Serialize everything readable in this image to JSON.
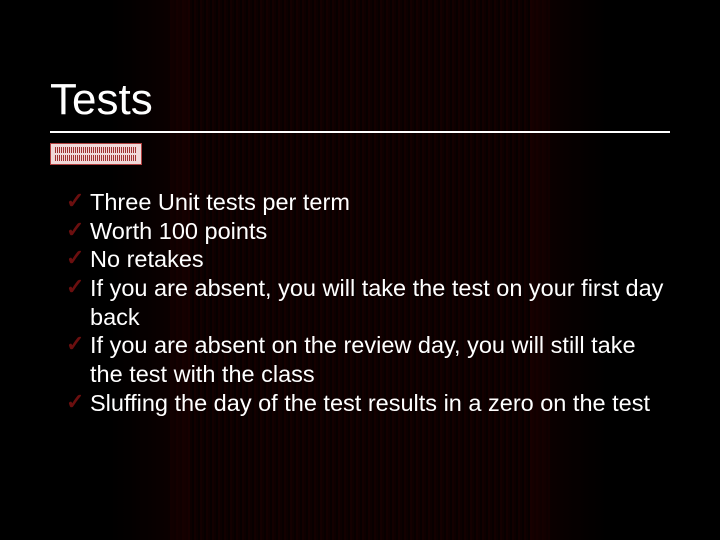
{
  "slide": {
    "title": "Tests",
    "bullets": [
      "Three Unit tests per term",
      "Worth 100 points",
      "No retakes",
      "If you are absent, you will take the test on your first day back",
      "If you are absent on the review day, you will still take the test with the class",
      "Sluffing the day of the test results in a zero on the test"
    ],
    "colors": {
      "background": "#000000",
      "text": "#ffffff",
      "check": "#6b0f0f",
      "stripe_dark": "#0a0000",
      "stripe_light": "#1a0000",
      "tag_bg": "#f0d8d8",
      "tag_border": "#b04040"
    },
    "type": "presentation-slide",
    "title_fontsize": 44,
    "body_fontsize": 23.5
  }
}
